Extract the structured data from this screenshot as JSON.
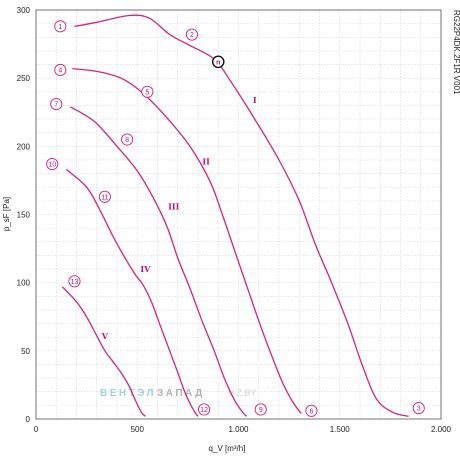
{
  "chart_data": {
    "type": "line",
    "title": "",
    "xlabel": "q_V [m³/h]",
    "ylabel": "p_sF [Pa]",
    "side_label": "RG22P4DK.2F1R V001",
    "xlim": [
      0,
      2000
    ],
    "ylim": [
      0,
      300
    ],
    "x_ticks": [
      "0",
      "500",
      "1.000",
      "1.500",
      "2.000"
    ],
    "y_ticks": [
      "0",
      "50",
      "100",
      "150",
      "200",
      "250",
      "300"
    ],
    "grid": true,
    "line_color": "#d6237f",
    "series": [
      {
        "name": "I",
        "points": [
          [
            190,
            288
          ],
          [
            300,
            291
          ],
          [
            460,
            296
          ],
          [
            560,
            294
          ],
          [
            660,
            282
          ],
          [
            760,
            274
          ],
          [
            880,
            264
          ],
          [
            960,
            248
          ],
          [
            1080,
            220
          ],
          [
            1200,
            190
          ],
          [
            1300,
            160
          ],
          [
            1380,
            128
          ],
          [
            1460,
            100
          ],
          [
            1540,
            70
          ],
          [
            1610,
            40
          ],
          [
            1680,
            15
          ],
          [
            1760,
            5
          ],
          [
            1840,
            2
          ]
        ]
      },
      {
        "name": "II",
        "points": [
          [
            180,
            257
          ],
          [
            300,
            255
          ],
          [
            420,
            250
          ],
          [
            520,
            240
          ],
          [
            640,
            222
          ],
          [
            760,
            200
          ],
          [
            860,
            174
          ],
          [
            920,
            150
          ],
          [
            980,
            124
          ],
          [
            1040,
            98
          ],
          [
            1100,
            72
          ],
          [
            1160,
            48
          ],
          [
            1220,
            26
          ],
          [
            1270,
            12
          ],
          [
            1310,
            4
          ]
        ]
      },
      {
        "name": "III",
        "points": [
          [
            170,
            229
          ],
          [
            290,
            218
          ],
          [
            400,
            200
          ],
          [
            500,
            182
          ],
          [
            580,
            162
          ],
          [
            650,
            140
          ],
          [
            700,
            118
          ],
          [
            760,
            96
          ],
          [
            820,
            72
          ],
          [
            880,
            50
          ],
          [
            930,
            30
          ],
          [
            980,
            14
          ],
          [
            1020,
            5
          ],
          [
            1040,
            2
          ]
        ]
      },
      {
        "name": "IV",
        "points": [
          [
            150,
            183
          ],
          [
            250,
            170
          ],
          [
            320,
            152
          ],
          [
            380,
            134
          ],
          [
            440,
            118
          ],
          [
            490,
            106
          ],
          [
            530,
            98
          ],
          [
            570,
            86
          ],
          [
            610,
            70
          ],
          [
            660,
            50
          ],
          [
            700,
            34
          ],
          [
            740,
            18
          ],
          [
            780,
            6
          ],
          [
            800,
            2
          ]
        ]
      },
      {
        "name": "V",
        "points": [
          [
            130,
            97
          ],
          [
            200,
            86
          ],
          [
            250,
            75
          ],
          [
            300,
            61
          ],
          [
            340,
            50
          ],
          [
            380,
            42
          ],
          [
            420,
            34
          ],
          [
            460,
            24
          ],
          [
            490,
            14
          ],
          [
            520,
            5
          ],
          [
            540,
            2
          ]
        ]
      }
    ],
    "curve_labels": [
      {
        "text": "I",
        "x": 1080,
        "y": 234
      },
      {
        "text": "II",
        "x": 840,
        "y": 189
      },
      {
        "text": "III",
        "x": 680,
        "y": 156
      },
      {
        "text": "IV",
        "x": 540,
        "y": 110
      },
      {
        "text": "V",
        "x": 340,
        "y": 61
      }
    ],
    "markers": [
      {
        "label": "1",
        "x": 120,
        "y": 288
      },
      {
        "label": "2",
        "x": 770,
        "y": 282
      },
      {
        "label": "3",
        "x": 1890,
        "y": 8
      },
      {
        "label": "4",
        "x": 120,
        "y": 256
      },
      {
        "label": "5",
        "x": 550,
        "y": 240
      },
      {
        "label": "6",
        "x": 1360,
        "y": 6
      },
      {
        "label": "7",
        "x": 100,
        "y": 231
      },
      {
        "label": "8",
        "x": 450,
        "y": 205
      },
      {
        "label": "9",
        "x": 1110,
        "y": 7
      },
      {
        "label": "10",
        "x": 80,
        "y": 187
      },
      {
        "label": "11",
        "x": 340,
        "y": 163
      },
      {
        "label": "12",
        "x": 830,
        "y": 7
      },
      {
        "label": "13",
        "x": 190,
        "y": 101
      },
      {
        "label": "n",
        "x": 900,
        "y": 262,
        "style": "bold"
      }
    ],
    "watermark": {
      "part1": "ВЕНТЭЛ",
      "part2": "ЗАПАД",
      "part3": "V-Z.BY"
    }
  }
}
